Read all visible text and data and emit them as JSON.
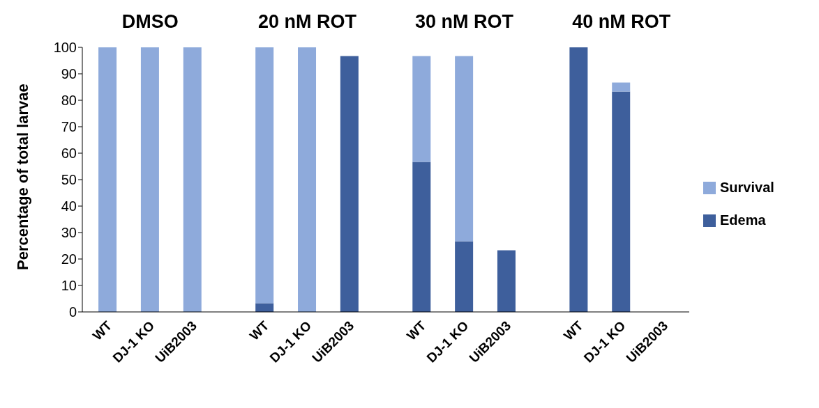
{
  "chart_data": {
    "type": "bar",
    "stacked": true,
    "ylabel": "Percentage of total larvae",
    "categories": [
      "WT",
      "DJ-1 KO",
      "UiB2003",
      "WT",
      "DJ-1 KO",
      "UiB2003",
      "WT",
      "DJ-1 KO",
      "UiB2003",
      "WT",
      "DJ-1 KO",
      "UiB2003"
    ],
    "annotations": [
      "DMSO",
      "20 nM ROT",
      "30 nM ROT",
      "40 nM ROT"
    ],
    "series": [
      {
        "name": "Edema",
        "color": "#3e5f9c",
        "values": [
          0,
          0,
          0,
          3.3,
          0,
          96.7,
          56.7,
          26.7,
          23.3,
          100,
          83.3,
          0
        ]
      },
      {
        "name": "Survival",
        "color": "#8eaadb",
        "values": [
          100,
          100,
          100,
          96.7,
          100,
          0,
          40,
          70,
          0,
          0,
          3.4,
          0
        ]
      }
    ],
    "ylim": [
      0,
      100
    ],
    "yticks": [
      0,
      10,
      20,
      30,
      40,
      50,
      60,
      70,
      80,
      90,
      100
    ],
    "grid": false,
    "legend": "right"
  }
}
